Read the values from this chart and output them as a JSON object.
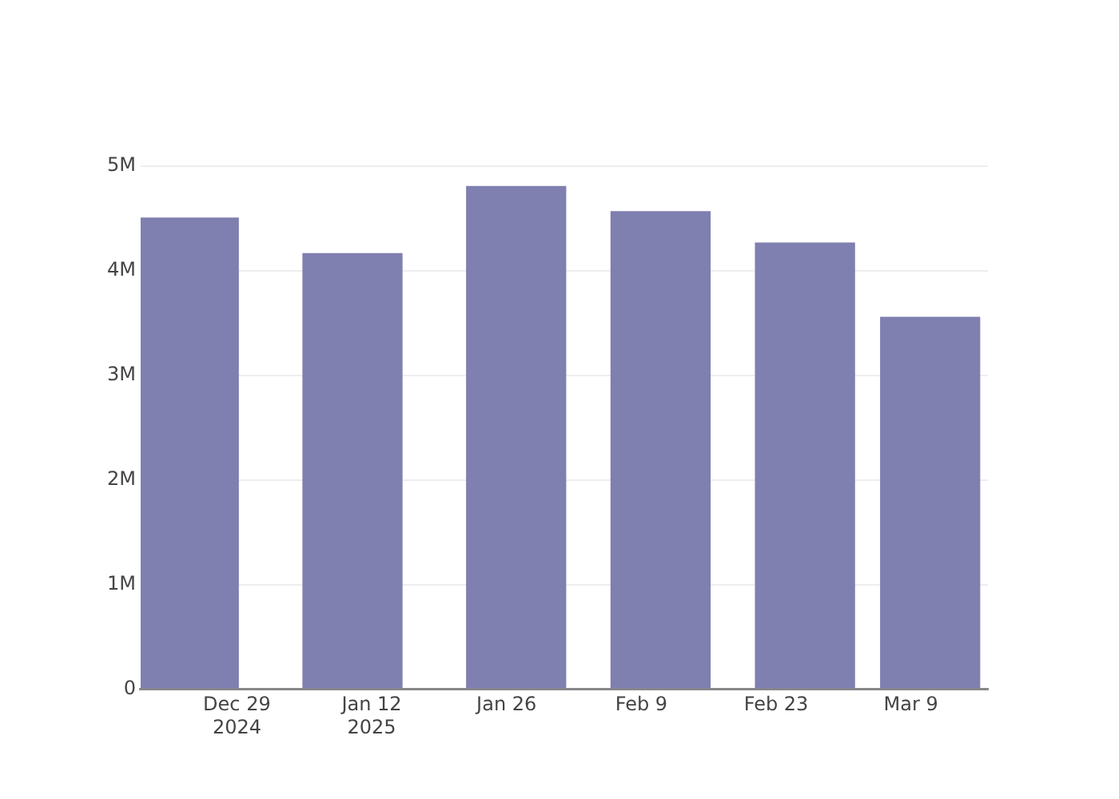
{
  "chart_data": {
    "type": "bar",
    "x": [
      "2024-12-24",
      "2025-01-10",
      "2025-01-27",
      "2025-02-11",
      "2025-02-26",
      "2025-03-11"
    ],
    "values": [
      4510000,
      4170000,
      4810000,
      4570000,
      4270000,
      3560000
    ],
    "color": "#7f7fb0",
    "xlim": [
      "2024-12-19",
      "2025-03-17"
    ],
    "xticks": [
      {
        "value": "2024-12-29",
        "label": "Dec 29\n2024"
      },
      {
        "value": "2025-01-12",
        "label": "Jan 12\n2025"
      },
      {
        "value": "2025-01-26",
        "label": "Jan 26"
      },
      {
        "value": "2025-02-09",
        "label": "Feb 9"
      },
      {
        "value": "2025-02-23",
        "label": "Feb 23"
      },
      {
        "value": "2025-03-09",
        "label": "Mar 9"
      }
    ],
    "ylim": [
      0,
      5000000
    ],
    "yticks": [
      {
        "value": 0,
        "label": "0"
      },
      {
        "value": 1000000,
        "label": "1M"
      },
      {
        "value": 2000000,
        "label": "2M"
      },
      {
        "value": 3000000,
        "label": "3M"
      },
      {
        "value": 4000000,
        "label": "4M"
      },
      {
        "value": 5000000,
        "label": "5M"
      }
    ],
    "grid": "y"
  }
}
